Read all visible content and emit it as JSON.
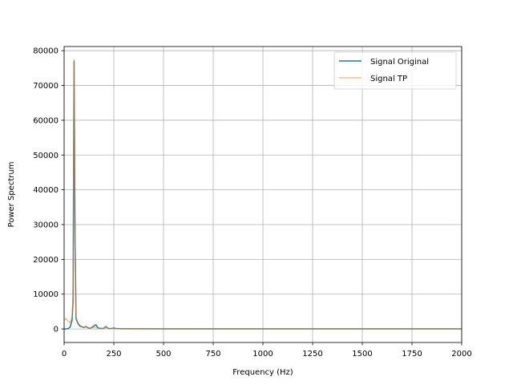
{
  "chart_data": {
    "type": "line",
    "title": "",
    "xlabel": "Frequency (Hz)",
    "ylabel": "Power Spectrum",
    "xlim": [
      0,
      2000
    ],
    "ylim": [
      -3900,
      81200
    ],
    "xticks": [
      0,
      250,
      500,
      750,
      1000,
      1250,
      1500,
      1750,
      2000
    ],
    "xtick_labels": [
      "0",
      "250",
      "500",
      "750",
      "1000",
      "1250",
      "1500",
      "1750",
      "2000"
    ],
    "yticks": [
      0,
      10000,
      20000,
      30000,
      40000,
      50000,
      60000,
      70000,
      80000
    ],
    "ytick_labels": [
      "0",
      "10000",
      "20000",
      "30000",
      "40000",
      "50000",
      "60000",
      "70000",
      "80000"
    ],
    "grid": true,
    "legend_position": "top-right",
    "series": [
      {
        "name": "Signal Original",
        "color": "#1f77b4",
        "opacity": 1,
        "x": [
          0,
          10,
          20,
          30,
          40,
          45,
          50,
          55,
          60,
          70,
          80,
          90,
          100,
          110,
          120,
          130,
          140,
          150,
          160,
          170,
          180,
          190,
          200,
          210,
          220,
          230,
          240,
          250,
          260,
          280,
          300,
          400,
          500,
          750,
          1000,
          1250,
          1500,
          1750,
          2000
        ],
        "y": [
          0,
          0,
          100,
          500,
          2500,
          8000,
          77000,
          25000,
          3000,
          1500,
          800,
          600,
          400,
          700,
          300,
          200,
          400,
          900,
          1200,
          300,
          200,
          100,
          200,
          700,
          200,
          100,
          150,
          300,
          100,
          80,
          60,
          40,
          30,
          20,
          20,
          15,
          15,
          10,
          10
        ]
      },
      {
        "name": "Signal TP",
        "color": "#ff7f0e",
        "opacity": 0.5,
        "x": [
          0,
          10,
          20,
          30,
          40,
          45,
          50,
          55,
          60,
          70,
          80,
          90,
          100,
          110,
          120,
          130,
          140,
          150,
          160,
          170,
          180,
          190,
          200,
          210,
          220,
          230,
          240,
          250,
          260,
          280,
          300,
          400,
          500,
          750,
          1000,
          1250,
          1500,
          1750,
          2000
        ],
        "y": [
          2500,
          3000,
          2200,
          1800,
          3500,
          9000,
          77500,
          26000,
          3500,
          1800,
          1000,
          700,
          500,
          600,
          350,
          250,
          300,
          500,
          400,
          200,
          150,
          100,
          150,
          500,
          150,
          100,
          100,
          200,
          80,
          60,
          40,
          30,
          20,
          15,
          10,
          10,
          10,
          10,
          10
        ]
      }
    ]
  }
}
